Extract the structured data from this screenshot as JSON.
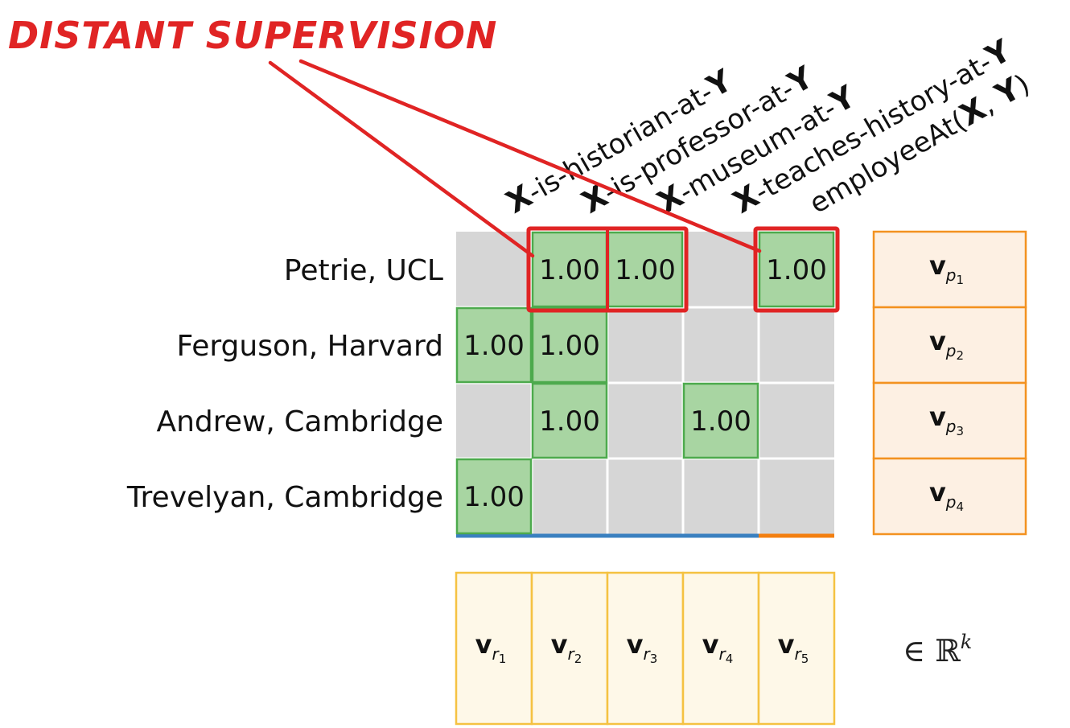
{
  "annotation": {
    "label": "DISTANT SUPERVISION"
  },
  "rows": [
    {
      "label": "Petrie, UCL",
      "vector": {
        "base": "v",
        "sub": "p",
        "idx": "1"
      }
    },
    {
      "label": "Ferguson, Harvard",
      "vector": {
        "base": "v",
        "sub": "p",
        "idx": "2"
      }
    },
    {
      "label": "Andrew, Cambridge",
      "vector": {
        "base": "v",
        "sub": "p",
        "idx": "3"
      }
    },
    {
      "label": "Trevelyan, Cambridge",
      "vector": {
        "base": "v",
        "sub": "p",
        "idx": "4"
      }
    }
  ],
  "columns": [
    {
      "pre": "X",
      "mid": "-is-historian-at-",
      "post": "Y",
      "vector": {
        "base": "v",
        "sub": "r",
        "idx": "1"
      }
    },
    {
      "pre": "X",
      "mid": "-is-professor-at-",
      "post": "Y",
      "vector": {
        "base": "v",
        "sub": "r",
        "idx": "2"
      }
    },
    {
      "pre": "X",
      "mid": "-museum-at-",
      "post": "Y",
      "vector": {
        "base": "v",
        "sub": "r",
        "idx": "3"
      }
    },
    {
      "pre": "X",
      "mid": "-teaches-history-at-",
      "post": "Y",
      "vector": {
        "base": "v",
        "sub": "r",
        "idx": "4"
      }
    },
    {
      "pre": "employeeAt(",
      "mid": "X",
      "post": ", Y)",
      "kb": true,
      "vector": {
        "base": "v",
        "sub": "r",
        "idx": "5"
      }
    }
  ],
  "cells": [
    {
      "row": 0,
      "col": 1,
      "value": "1.00",
      "supervised": true
    },
    {
      "row": 0,
      "col": 2,
      "value": "1.00",
      "supervised": true
    },
    {
      "row": 0,
      "col": 4,
      "value": "1.00",
      "supervised": true
    },
    {
      "row": 1,
      "col": 0,
      "value": "1.00"
    },
    {
      "row": 1,
      "col": 1,
      "value": "1.00"
    },
    {
      "row": 2,
      "col": 1,
      "value": "1.00"
    },
    {
      "row": 2,
      "col": 3,
      "value": "1.00"
    },
    {
      "row": 3,
      "col": 0,
      "value": "1.00"
    }
  ],
  "space": {
    "symbol": "∈ ℝ",
    "exp": "k"
  },
  "colors": {
    "grid_bg": "#d6d6d6",
    "cell_green": "#a8d5a2",
    "cell_green_border": "#4daa4d",
    "highlight_red": "#e02424",
    "row_vec_fill": "#fdf0e3",
    "row_vec_border": "#f39220",
    "col_vec_fill": "#fef8e8",
    "col_vec_border": "#f5c242",
    "axis_blue": "#3a80c0",
    "axis_orange": "#f37f10"
  }
}
